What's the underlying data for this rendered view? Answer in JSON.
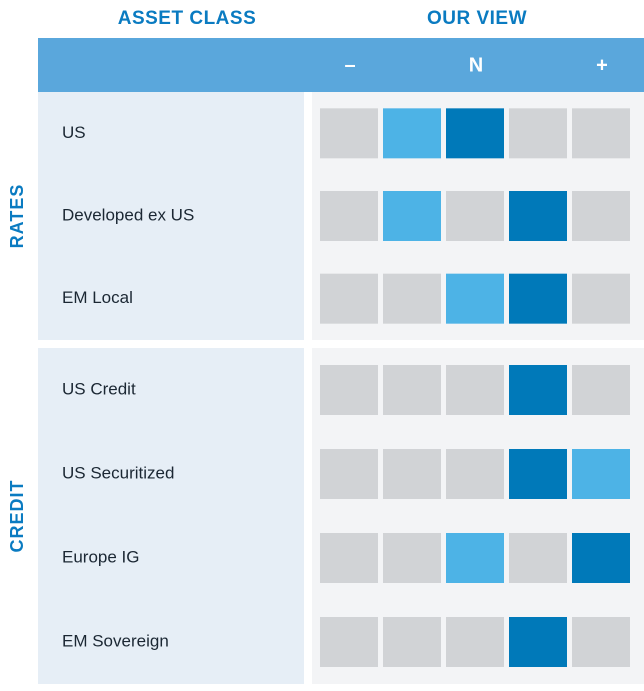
{
  "header": {
    "asset_class": "ASSET CLASS",
    "our_view": "OUR VIEW",
    "scale": [
      "–",
      "N",
      "+"
    ]
  },
  "colors": {
    "view": "#0079b9",
    "prior": "#4db3e6",
    "neutral": "#d1d3d6"
  },
  "groups": [
    {
      "name": "RATES",
      "rows": [
        {
          "label": "US",
          "view": 2,
          "prior": 1
        },
        {
          "label": "Developed ex US",
          "view": 3,
          "prior": 1
        },
        {
          "label": "EM Local",
          "view": 3,
          "prior": 2
        }
      ]
    },
    {
      "name": "CREDIT",
      "rows": [
        {
          "label": "US Credit",
          "view": 3,
          "prior": null
        },
        {
          "label": "US Securitized",
          "view": 3,
          "prior": 4
        },
        {
          "label": "Europe IG",
          "view": 4,
          "prior": 2
        },
        {
          "label": "EM Sovereign",
          "view": 3,
          "prior": null
        }
      ]
    }
  ]
}
